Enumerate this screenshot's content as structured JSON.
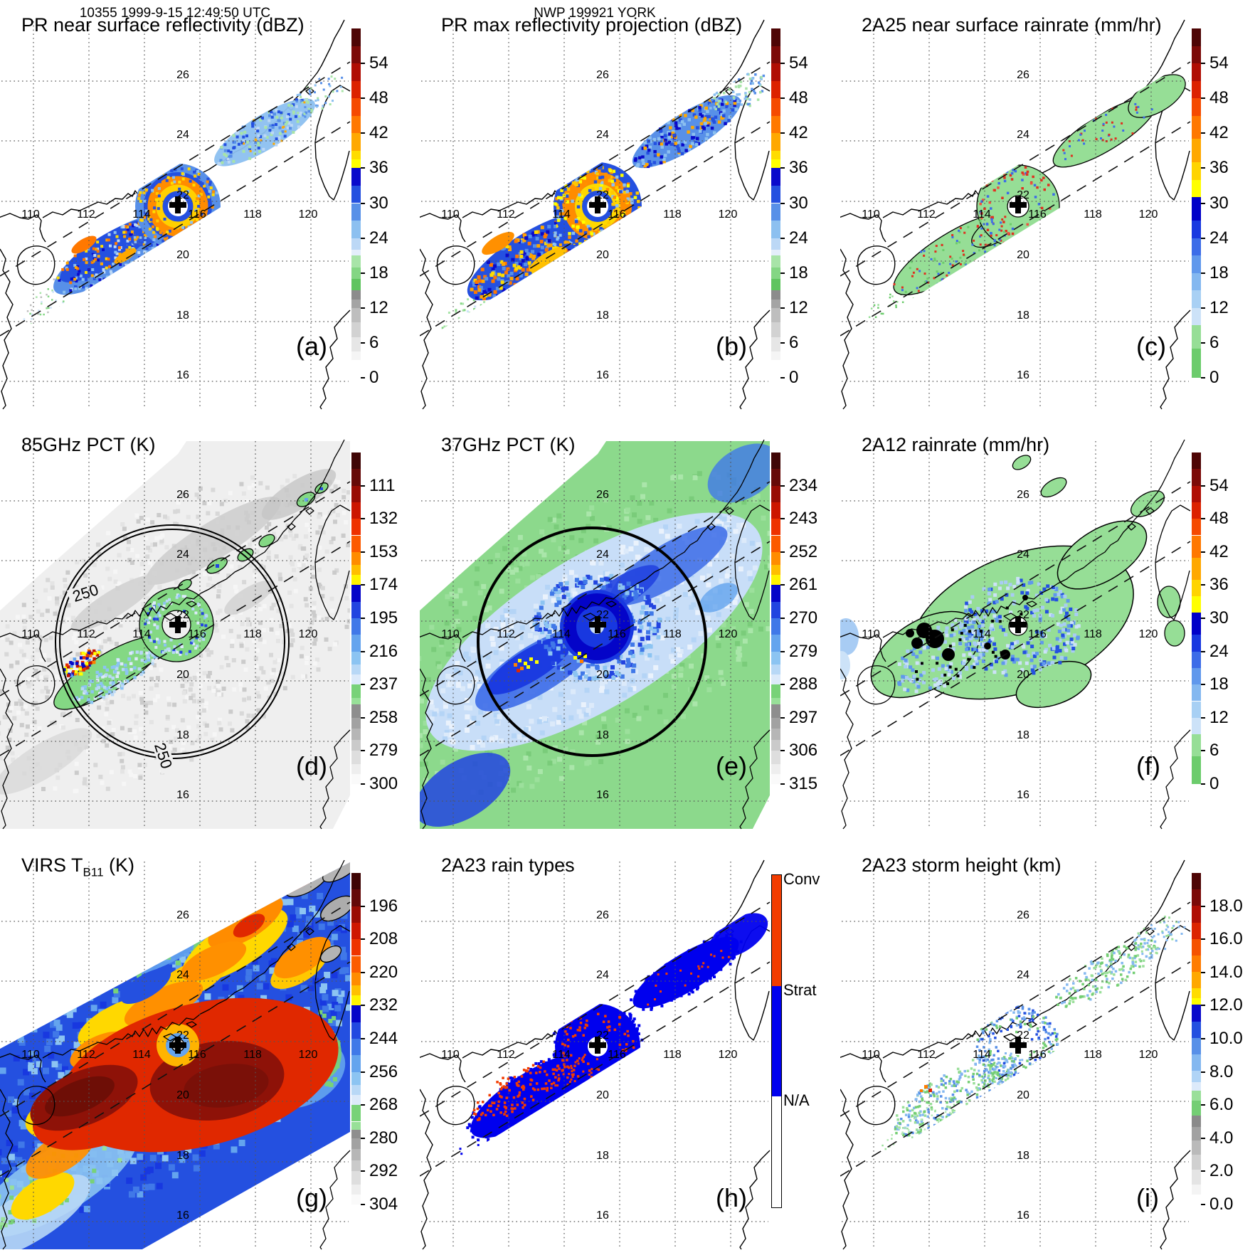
{
  "figure": {
    "header_left": "10355 1999-9-15 12:49:50 UTC",
    "header_center": "NWP 199921 YORK",
    "background": "#FFFFFF"
  },
  "geo": {
    "lon_labels": [
      "110",
      "112",
      "114",
      "116",
      "118",
      "120"
    ],
    "lat_labels": [
      "26",
      "24",
      "22",
      "20",
      "18",
      "16"
    ],
    "storm_center_marker": "black-cross",
    "storm_center_lonlat": [
      115.2,
      21.8
    ]
  },
  "palettes": {
    "dbz": [
      [
        "#4E0505",
        3
      ],
      [
        "#7C0A08",
        3
      ],
      [
        "#B00E04",
        3
      ],
      [
        "#DC2200",
        3
      ],
      [
        "#F54A00",
        3
      ],
      [
        "#FF7800",
        3
      ],
      [
        "#FFA800",
        3
      ],
      [
        "#FFDC00",
        1.5
      ],
      [
        "#FFFF00",
        1.5
      ],
      [
        "#0A0ACB",
        3
      ],
      [
        "#2450E0",
        3
      ],
      [
        "#5890E8",
        3
      ],
      [
        "#8CC0F0",
        3
      ],
      [
        "#BCD8F6",
        2
      ],
      [
        "#E4EEFB",
        1
      ],
      [
        "#A8E4A8",
        2
      ],
      [
        "#84D684",
        2
      ],
      [
        "#60C460",
        2
      ],
      [
        "#8C8C8C",
        1.5
      ],
      [
        "#A4A4A4",
        1.5
      ],
      [
        "#BEBEBE",
        2.5
      ],
      [
        "#D2D2D2",
        2.5
      ],
      [
        "#E6E6E6",
        2.5
      ],
      [
        "#F5F5F5",
        1.5
      ],
      [
        "#FFFFFF",
        3
      ]
    ],
    "rain": [
      [
        "#4E0505",
        3
      ],
      [
        "#7C0A08",
        3
      ],
      [
        "#B00E04",
        3
      ],
      [
        "#DC2200",
        3
      ],
      [
        "#F54A00",
        3
      ],
      [
        "#FF7800",
        4
      ],
      [
        "#FFA800",
        4
      ],
      [
        "#FFD400",
        3
      ],
      [
        "#FFFF00",
        3
      ],
      [
        "#0000C8",
        4
      ],
      [
        "#1838E0",
        3
      ],
      [
        "#3C6CE8",
        3
      ],
      [
        "#6098EC",
        3
      ],
      [
        "#84B8F0",
        3
      ],
      [
        "#A8D0F4",
        3
      ],
      [
        "#CCE2F8",
        3
      ],
      [
        "#96DE96",
        4
      ],
      [
        "#6CCC6C",
        5
      ]
    ],
    "pct": [
      [
        "#400606",
        0.5
      ],
      [
        "#660A08",
        0.5
      ],
      [
        "#980C04",
        0.5
      ],
      [
        "#CC1600",
        0.5
      ],
      [
        "#EE3200",
        0.5
      ],
      [
        "#FC5A00",
        0.5
      ],
      [
        "#FF8C00",
        0.4
      ],
      [
        "#FFBE00",
        0.3
      ],
      [
        "#FFF400",
        0.3
      ],
      [
        "#0404C8",
        0.5
      ],
      [
        "#2244E0",
        0.5
      ],
      [
        "#4078E8",
        0.5
      ],
      [
        "#64A4EE",
        0.5
      ],
      [
        "#8CC4F2",
        0.4
      ],
      [
        "#B8D8F6",
        0.3
      ],
      [
        "#DCEAFA",
        0.3
      ],
      [
        "#78D278",
        0.4
      ],
      [
        "#98E098",
        0.2
      ],
      [
        "#8E8E8E",
        0.4
      ],
      [
        "#A2A2A2",
        0.33
      ],
      [
        "#B6B6B6",
        0.33
      ],
      [
        "#CACACA",
        0.34
      ],
      [
        "#DEDEDE",
        0.4
      ],
      [
        "#EEEEEE",
        0.3
      ],
      [
        "#FAFAFA",
        0.3
      ]
    ],
    "virs": [
      [
        "#3E0404",
        0.5
      ],
      [
        "#640808",
        0.5
      ],
      [
        "#9A0C04",
        0.5
      ],
      [
        "#CE1600",
        0.5
      ],
      [
        "#EE3400",
        0.5
      ],
      [
        "#FC5C00",
        0.5
      ],
      [
        "#FF8C00",
        0.4
      ],
      [
        "#FFC000",
        0.3
      ],
      [
        "#FFF400",
        0.3
      ],
      [
        "#0404C8",
        0.5
      ],
      [
        "#2248E0",
        0.5
      ],
      [
        "#4078E8",
        0.5
      ],
      [
        "#64A4EE",
        0.5
      ],
      [
        "#8CC4F2",
        0.4
      ],
      [
        "#B8D8F6",
        0.3
      ],
      [
        "#DCEAFA",
        0.3
      ],
      [
        "#78D278",
        0.5
      ],
      [
        "#98E098",
        0.25
      ],
      [
        "#8E8E8E",
        0.25
      ],
      [
        "#A2A2A2",
        0.33
      ],
      [
        "#B6B6B6",
        0.33
      ],
      [
        "#CACACA",
        0.34
      ],
      [
        "#DEDEDE",
        0.4
      ],
      [
        "#EEEEEE",
        0.3
      ],
      [
        "#FAFAFA",
        0.3
      ]
    ],
    "height": [
      [
        "#4E0505",
        0.5
      ],
      [
        "#7C0A08",
        0.5
      ],
      [
        "#B00E04",
        0.5
      ],
      [
        "#DC2400",
        0.5
      ],
      [
        "#F55200",
        0.5
      ],
      [
        "#FF7C00",
        0.5
      ],
      [
        "#FFA800",
        0.5
      ],
      [
        "#FFDC00",
        0.3
      ],
      [
        "#FFFF00",
        0.2
      ],
      [
        "#0A0ACB",
        0.5
      ],
      [
        "#2450E0",
        0.5
      ],
      [
        "#5890E8",
        0.5
      ],
      [
        "#84B8F0",
        0.5
      ],
      [
        "#B0D4F6",
        0.35
      ],
      [
        "#DCEAFA",
        0.25
      ],
      [
        "#9ADF9A",
        0.3
      ],
      [
        "#74CE74",
        0.45
      ],
      [
        "#8A8A8A",
        0.35
      ],
      [
        "#A2A2A2",
        0.4
      ],
      [
        "#BABABA",
        0.45
      ],
      [
        "#D0D0D0",
        0.45
      ],
      [
        "#E4E4E4",
        0.45
      ],
      [
        "#F4F4F4",
        0.3
      ],
      [
        "#FFFFFF",
        0.3
      ]
    ],
    "raintype": [
      [
        "#F23C00",
        1
      ],
      [
        "#0000EE",
        1
      ],
      [
        "#FFFFFF",
        1
      ]
    ]
  },
  "panels": [
    {
      "id": "a",
      "title_prefix": "PR near surface reflectivity (dBZ)",
      "title_sub": "",
      "title_suffix": "",
      "letter": "(a)",
      "palette": "dbz",
      "ticks": [
        "54",
        "48",
        "42",
        "36",
        "30",
        "24",
        "18",
        "12",
        "6",
        "0"
      ]
    },
    {
      "id": "b",
      "title_prefix": "PR max reflectivity projection (dBZ)",
      "title_sub": "",
      "title_suffix": "",
      "letter": "(b)",
      "palette": "dbz",
      "ticks": [
        "54",
        "48",
        "42",
        "36",
        "30",
        "24",
        "18",
        "12",
        "6",
        "0"
      ]
    },
    {
      "id": "c",
      "title_prefix": "2A25 near surface rainrate (mm/hr)",
      "title_sub": "",
      "title_suffix": "",
      "letter": "(c)",
      "palette": "rain",
      "ticks": [
        "54",
        "48",
        "42",
        "36",
        "30",
        "24",
        "18",
        "12",
        "6",
        "0"
      ]
    },
    {
      "id": "d",
      "title_prefix": "85GHz PCT (K)",
      "title_sub": "",
      "title_suffix": "",
      "letter": "(d)",
      "palette": "pct",
      "ticks": [
        "111",
        "132",
        "153",
        "174",
        "195",
        "216",
        "237",
        "258",
        "279",
        "300"
      ],
      "contour_label": "250"
    },
    {
      "id": "e",
      "title_prefix": "37GHz PCT (K)",
      "title_sub": "",
      "title_suffix": "",
      "letter": "(e)",
      "palette": "pct",
      "ticks": [
        "234",
        "243",
        "252",
        "261",
        "270",
        "279",
        "288",
        "297",
        "306",
        "315"
      ]
    },
    {
      "id": "f",
      "title_prefix": "2A12 rainrate (mm/hr)",
      "title_sub": "",
      "title_suffix": "",
      "letter": "(f)",
      "palette": "rain",
      "ticks": [
        "54",
        "48",
        "42",
        "36",
        "30",
        "24",
        "18",
        "12",
        "6",
        "0"
      ]
    },
    {
      "id": "g",
      "title_prefix": "VIRS T",
      "title_sub": "B11",
      "title_suffix": " (K)",
      "letter": "(g)",
      "palette": "virs",
      "ticks": [
        "196",
        "208",
        "220",
        "232",
        "244",
        "256",
        "268",
        "280",
        "292",
        "304"
      ]
    },
    {
      "id": "h",
      "title_prefix": "2A23 rain types",
      "title_sub": "",
      "title_suffix": "",
      "letter": "(h)",
      "palette": "raintype",
      "ticks": [
        "Conv",
        "Strat",
        "N/A"
      ],
      "categorical": true
    },
    {
      "id": "i",
      "title_prefix": "2A23 storm height (km)",
      "title_sub": "",
      "title_suffix": "",
      "letter": "(i)",
      "palette": "height",
      "ticks": [
        "18.0",
        "16.0",
        "14.0",
        "12.0",
        "10.0",
        "8.0",
        "6.0",
        "4.0",
        "2.0",
        "0.0"
      ]
    }
  ],
  "chart_data": [
    {
      "panel": "a",
      "type": "heatmap",
      "title": "PR near surface reflectivity",
      "units": "dBZ",
      "colorbar_ticks": [
        54,
        48,
        42,
        36,
        30,
        24,
        18,
        12,
        6,
        0
      ],
      "lon_ticks": [
        110,
        112,
        114,
        116,
        118,
        120
      ],
      "lat_ticks": [
        26,
        24,
        22,
        20,
        18,
        16
      ],
      "features": "typhoon eyewall and spiral rainbands in narrow PR swath, eye near 115.2E 21.8N"
    },
    {
      "panel": "b",
      "type": "heatmap",
      "title": "PR max reflectivity projection",
      "units": "dBZ",
      "colorbar_ticks": [
        54,
        48,
        42,
        36,
        30,
        24,
        18,
        12,
        6,
        0
      ],
      "features": "same swath as (a) with broader, more intense echoes"
    },
    {
      "panel": "c",
      "type": "heatmap",
      "title": "2A25 near surface rainrate",
      "units": "mm/hr",
      "colorbar_ticks": [
        54,
        48,
        42,
        36,
        30,
        24,
        18,
        12,
        6,
        0
      ],
      "features": "light-rain green field with convective red/blue speckles around the eyewall"
    },
    {
      "panel": "d",
      "type": "heatmap",
      "title": "85GHz PCT",
      "units": "K",
      "colorbar_ticks": [
        111,
        132,
        153,
        174,
        195,
        216,
        237,
        258,
        279,
        300
      ],
      "contour_label": 250,
      "features": "wide TMI swath, grayscale background, green <237K ring and SW rainband, 250K contour circle"
    },
    {
      "panel": "e",
      "type": "heatmap",
      "title": "37GHz PCT",
      "units": "K",
      "colorbar_ticks": [
        234,
        243,
        252,
        261,
        270,
        279,
        288,
        297,
        306,
        315
      ],
      "features": "green/light-blue field with dark-blue eyewall ring and bold circle contour"
    },
    {
      "panel": "f",
      "type": "heatmap",
      "title": "2A12 rainrate",
      "units": "mm/hr",
      "colorbar_ticks": [
        54,
        48,
        42,
        36,
        30,
        24,
        18,
        12,
        6,
        0
      ],
      "features": "broad green rain areas with blue speckles and black saturated blobs west of center"
    },
    {
      "panel": "g",
      "type": "heatmap",
      "title": "VIRS TB11",
      "units": "K",
      "colorbar_ticks": [
        196,
        208,
        220,
        232,
        244,
        256,
        268,
        280,
        292,
        304
      ],
      "features": "full IR image: dark-red cold cloud shield, warm gray eye, blue/green periphery"
    },
    {
      "panel": "h",
      "type": "categorical-map",
      "title": "2A23 rain types",
      "categories": [
        "Conv",
        "Strat",
        "N/A"
      ],
      "category_colors": [
        "#F23C00",
        "#0000EE",
        "#FFFFFF"
      ],
      "features": "stratiform blue swath with convective orange speckles"
    },
    {
      "panel": "i",
      "type": "heatmap",
      "title": "2A23 storm height",
      "units": "km",
      "colorbar_ticks": [
        18,
        16,
        14,
        12,
        10,
        8,
        6,
        4,
        2,
        0
      ],
      "features": "green 6 km echo tops with blue 8-12 km ring around eye"
    }
  ]
}
